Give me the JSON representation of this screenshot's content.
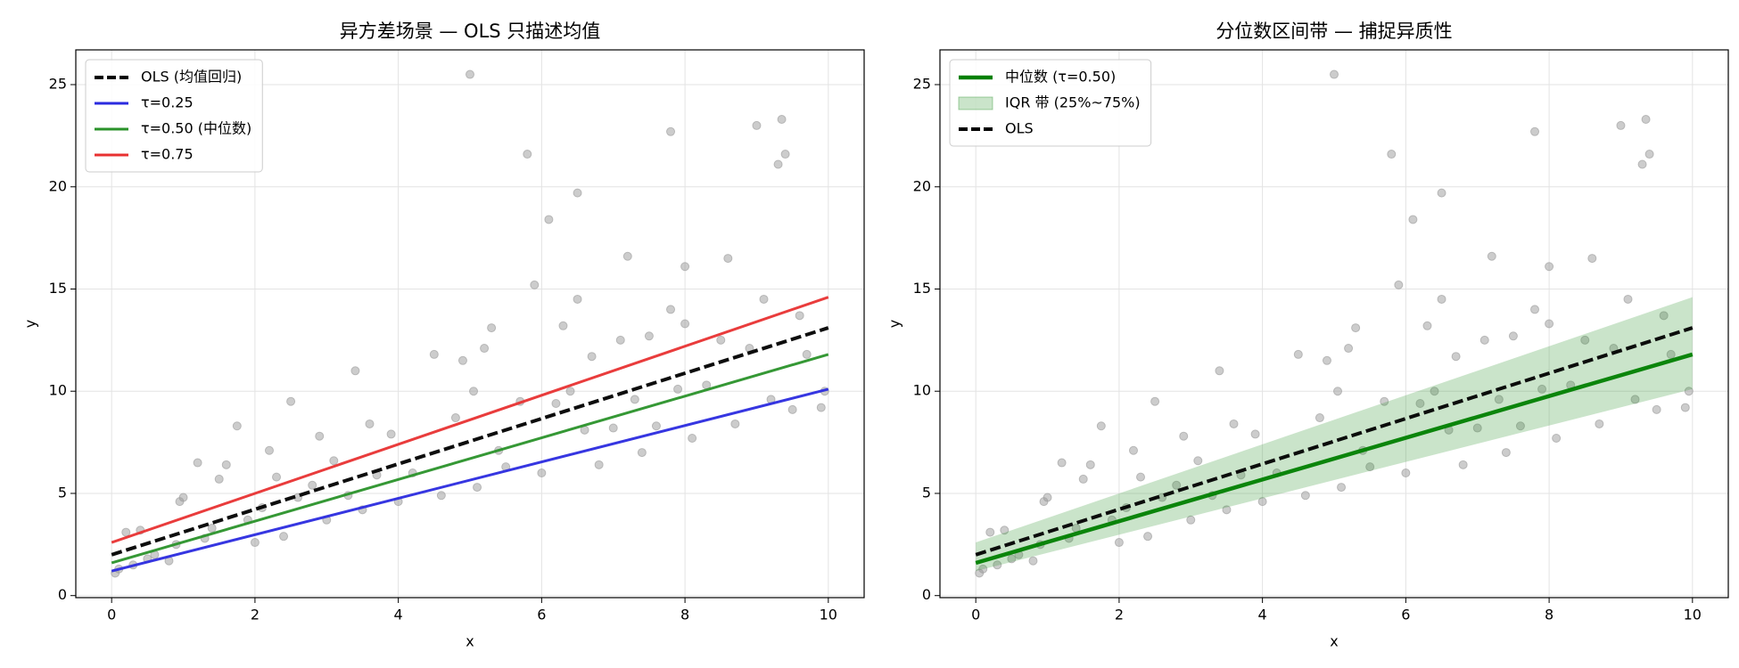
{
  "chart_data": [
    {
      "type": "scatter",
      "title": "异方差场景 — OLS 只描述均值",
      "xlabel": "x",
      "ylabel": "y",
      "xlim": [
        -0.5,
        10.5
      ],
      "ylim": [
        -0.1,
        26.7
      ],
      "xticks": [
        0,
        2,
        4,
        6,
        8,
        10
      ],
      "yticks": [
        0,
        5,
        10,
        15,
        20,
        25
      ],
      "grid": true,
      "legend": "upper left",
      "points": {
        "color": "#999999",
        "x": [
          0.05,
          0.1,
          0.2,
          0.3,
          0.4,
          0.5,
          0.6,
          0.8,
          0.9,
          0.95,
          1.0,
          1.2,
          1.3,
          1.4,
          1.5,
          1.6,
          1.75,
          1.9,
          2.0,
          2.1,
          2.2,
          2.3,
          2.4,
          2.5,
          2.6,
          2.8,
          2.9,
          3.0,
          3.1,
          3.3,
          3.4,
          3.5,
          3.6,
          3.7,
          3.9,
          4.0,
          4.2,
          4.5,
          4.6,
          4.8,
          4.9,
          5.0,
          5.05,
          5.1,
          5.2,
          5.3,
          5.4,
          5.5,
          5.7,
          5.8,
          5.9,
          6.0,
          6.1,
          6.2,
          6.3,
          6.4,
          6.5,
          6.5,
          6.6,
          6.7,
          6.8,
          7.0,
          7.1,
          7.2,
          7.3,
          7.4,
          7.5,
          7.6,
          7.8,
          7.8,
          7.9,
          8.0,
          8.0,
          8.1,
          8.3,
          8.5,
          8.6,
          8.7,
          8.9,
          9.0,
          9.1,
          9.2,
          9.3,
          9.35,
          9.4,
          9.5,
          9.6,
          9.7,
          9.9,
          9.95
        ],
        "y": [
          1.1,
          1.3,
          3.1,
          1.5,
          3.2,
          1.8,
          2.0,
          1.7,
          2.5,
          4.6,
          4.8,
          6.5,
          2.8,
          3.3,
          5.7,
          6.4,
          8.3,
          3.7,
          2.6,
          4.3,
          7.1,
          5.8,
          2.9,
          9.5,
          4.8,
          5.4,
          7.8,
          3.7,
          6.6,
          4.9,
          11.0,
          4.2,
          8.4,
          5.9,
          7.9,
          4.6,
          6.0,
          11.8,
          4.9,
          8.7,
          11.5,
          25.5,
          10.0,
          5.3,
          12.1,
          13.1,
          7.1,
          6.3,
          9.5,
          21.6,
          15.2,
          6.0,
          18.4,
          9.4,
          13.2,
          10.0,
          19.7,
          14.5,
          8.1,
          11.7,
          6.4,
          8.2,
          12.5,
          16.6,
          9.6,
          7.0,
          12.7,
          8.3,
          22.7,
          14.0,
          10.1,
          16.1,
          13.3,
          7.7,
          10.3,
          12.5,
          16.5,
          8.4,
          12.1,
          23.0,
          14.5,
          9.6,
          21.1,
          23.3,
          21.6,
          9.1,
          13.7,
          11.8,
          9.2,
          10.0
        ]
      },
      "series": [
        {
          "name": "OLS (均值回归)",
          "color": "#000000",
          "dashed": true,
          "width": 4,
          "x": [
            0,
            10
          ],
          "values": [
            2.0,
            13.1
          ]
        },
        {
          "name": "τ=0.25",
          "color": "#2b2bdf",
          "width": 3,
          "x": [
            0,
            10
          ],
          "values": [
            1.2,
            10.1
          ]
        },
        {
          "name": "τ=0.50 (中位数)",
          "color": "#2a922a",
          "width": 3,
          "x": [
            0,
            10
          ],
          "values": [
            1.6,
            11.8
          ]
        },
        {
          "name": "τ=0.75",
          "color": "#e83131",
          "width": 3,
          "x": [
            0,
            10
          ],
          "values": [
            2.6,
            14.6
          ]
        }
      ]
    },
    {
      "type": "scatter",
      "title": "分位数区间带 — 捕捉异质性",
      "xlabel": "x",
      "ylabel": "y",
      "xlim": [
        -0.5,
        10.5
      ],
      "ylim": [
        -0.1,
        26.7
      ],
      "xticks": [
        0,
        2,
        4,
        6,
        8,
        10
      ],
      "yticks": [
        0,
        5,
        10,
        15,
        20,
        25
      ],
      "grid": true,
      "legend": "upper left",
      "points": {
        "color": "#999999",
        "x": [
          0.05,
          0.1,
          0.2,
          0.3,
          0.4,
          0.5,
          0.6,
          0.8,
          0.9,
          0.95,
          1.0,
          1.2,
          1.3,
          1.4,
          1.5,
          1.6,
          1.75,
          1.9,
          2.0,
          2.1,
          2.2,
          2.3,
          2.4,
          2.5,
          2.6,
          2.8,
          2.9,
          3.0,
          3.1,
          3.3,
          3.4,
          3.5,
          3.6,
          3.7,
          3.9,
          4.0,
          4.2,
          4.5,
          4.6,
          4.8,
          4.9,
          5.0,
          5.05,
          5.1,
          5.2,
          5.3,
          5.4,
          5.5,
          5.7,
          5.8,
          5.9,
          6.0,
          6.1,
          6.2,
          6.3,
          6.4,
          6.5,
          6.5,
          6.6,
          6.7,
          6.8,
          7.0,
          7.1,
          7.2,
          7.3,
          7.4,
          7.5,
          7.6,
          7.8,
          7.8,
          7.9,
          8.0,
          8.0,
          8.1,
          8.3,
          8.5,
          8.6,
          8.7,
          8.9,
          9.0,
          9.1,
          9.2,
          9.3,
          9.35,
          9.4,
          9.5,
          9.6,
          9.7,
          9.9,
          9.95
        ],
        "y": [
          1.1,
          1.3,
          3.1,
          1.5,
          3.2,
          1.8,
          2.0,
          1.7,
          2.5,
          4.6,
          4.8,
          6.5,
          2.8,
          3.3,
          5.7,
          6.4,
          8.3,
          3.7,
          2.6,
          4.3,
          7.1,
          5.8,
          2.9,
          9.5,
          4.8,
          5.4,
          7.8,
          3.7,
          6.6,
          4.9,
          11.0,
          4.2,
          8.4,
          5.9,
          7.9,
          4.6,
          6.0,
          11.8,
          4.9,
          8.7,
          11.5,
          25.5,
          10.0,
          5.3,
          12.1,
          13.1,
          7.1,
          6.3,
          9.5,
          21.6,
          15.2,
          6.0,
          18.4,
          9.4,
          13.2,
          10.0,
          19.7,
          14.5,
          8.1,
          11.7,
          6.4,
          8.2,
          12.5,
          16.6,
          9.6,
          7.0,
          12.7,
          8.3,
          22.7,
          14.0,
          10.1,
          16.1,
          13.3,
          7.7,
          10.3,
          12.5,
          16.5,
          8.4,
          12.1,
          23.0,
          14.5,
          9.6,
          21.1,
          23.3,
          21.6,
          9.1,
          13.7,
          11.8,
          9.2,
          10.0
        ]
      },
      "series": [
        {
          "name": "中位数 (τ=0.50)",
          "color": "#008000",
          "width": 4.5,
          "x": [
            0,
            10
          ],
          "values": [
            1.6,
            11.8
          ]
        },
        {
          "name": "IQR 带 (25%~75%)",
          "color": "#2a922a",
          "band": true,
          "x": [
            0,
            10
          ],
          "lower": [
            1.2,
            10.1
          ],
          "upper": [
            2.6,
            14.6
          ]
        },
        {
          "name": "OLS",
          "color": "#000000",
          "dashed": true,
          "width": 4,
          "x": [
            0,
            10
          ],
          "values": [
            2.0,
            13.1
          ]
        }
      ]
    }
  ]
}
